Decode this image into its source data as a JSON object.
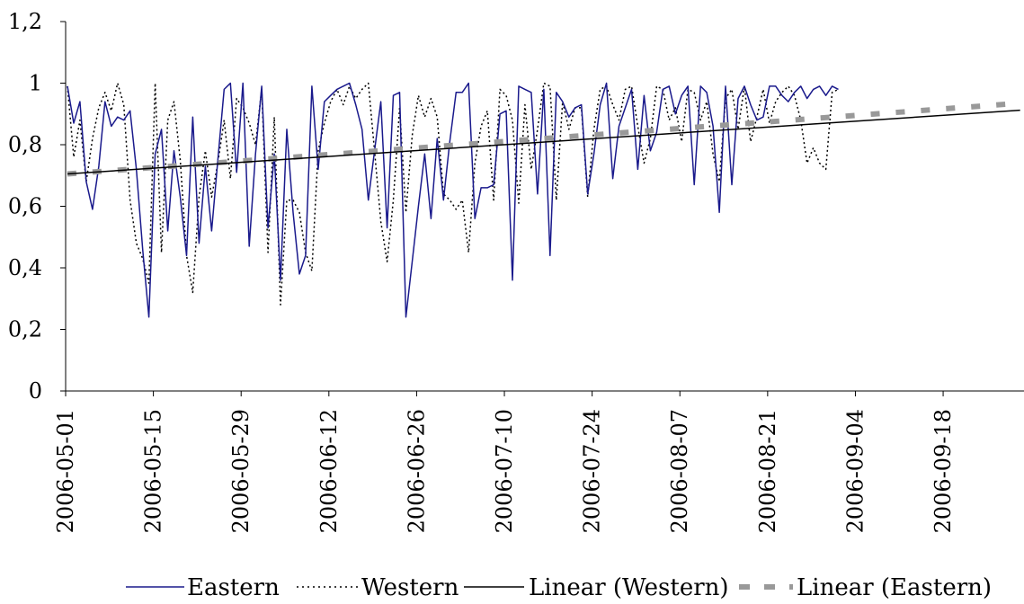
{
  "chart_data": {
    "type": "line",
    "title": "",
    "xlabel": "",
    "ylabel": "",
    "x_start": "2006-05-01",
    "x_end": "2006-09-30",
    "x_tick_labels": [
      "2006-05-01",
      "2006-05-15",
      "2006-05-29",
      "2006-06-12",
      "2006-06-26",
      "2006-07-10",
      "2006-07-24",
      "2006-08-07",
      "2006-08-21",
      "2006-09-04",
      "2006-09-18"
    ],
    "ylim": [
      0,
      1.2
    ],
    "y_tick_labels": [
      "0",
      "0,2",
      "0,4",
      "0,6",
      "0,8",
      "1",
      "1,2"
    ],
    "grid": false,
    "legend_position": "bottom",
    "series": [
      {
        "name": "Eastern",
        "color": "#1a1a8c",
        "style": "solid",
        "points": [
          [
            "2006-05-01",
            0.99
          ],
          [
            "2006-05-02",
            0.87
          ],
          [
            "2006-05-03",
            0.94
          ],
          [
            "2006-05-04",
            0.68
          ],
          [
            "2006-05-05",
            0.59
          ],
          [
            "2006-05-06",
            0.73
          ],
          [
            "2006-05-07",
            0.94
          ],
          [
            "2006-05-08",
            0.86
          ],
          [
            "2006-05-09",
            0.89
          ],
          [
            "2006-05-10",
            0.88
          ],
          [
            "2006-05-11",
            0.91
          ],
          [
            "2006-05-12",
            0.72
          ],
          [
            "2006-05-13",
            0.46
          ],
          [
            "2006-05-14",
            0.24
          ],
          [
            "2006-05-15",
            0.77
          ],
          [
            "2006-05-16",
            0.85
          ],
          [
            "2006-05-17",
            0.52
          ],
          [
            "2006-05-18",
            0.78
          ],
          [
            "2006-05-19",
            0.63
          ],
          [
            "2006-05-20",
            0.44
          ],
          [
            "2006-05-21",
            0.89
          ],
          [
            "2006-05-22",
            0.48
          ],
          [
            "2006-05-23",
            0.73
          ],
          [
            "2006-05-24",
            0.52
          ],
          [
            "2006-05-25",
            0.75
          ],
          [
            "2006-05-26",
            0.98
          ],
          [
            "2006-05-27",
            1.0
          ],
          [
            "2006-05-28",
            0.71
          ],
          [
            "2006-05-29",
            1.0
          ],
          [
            "2006-05-30",
            0.47
          ],
          [
            "2006-05-31",
            0.77
          ],
          [
            "2006-06-01",
            0.99
          ],
          [
            "2006-06-02",
            0.53
          ],
          [
            "2006-06-03",
            0.77
          ],
          [
            "2006-06-04",
            0.36
          ],
          [
            "2006-06-05",
            0.85
          ],
          [
            "2006-06-06",
            0.58
          ],
          [
            "2006-06-07",
            0.38
          ],
          [
            "2006-06-08",
            0.44
          ],
          [
            "2006-06-09",
            0.99
          ],
          [
            "2006-06-10",
            0.72
          ],
          [
            "2006-06-11",
            0.94
          ],
          [
            "2006-06-12",
            0.96
          ],
          [
            "2006-06-13",
            0.98
          ],
          [
            "2006-06-14",
            0.99
          ],
          [
            "2006-06-15",
            1.0
          ],
          [
            "2006-06-16",
            0.93
          ],
          [
            "2006-06-17",
            0.85
          ],
          [
            "2006-06-18",
            0.62
          ],
          [
            "2006-06-19",
            0.78
          ],
          [
            "2006-06-20",
            0.94
          ],
          [
            "2006-06-21",
            0.53
          ],
          [
            "2006-06-22",
            0.96
          ],
          [
            "2006-06-23",
            0.97
          ],
          [
            "2006-06-24",
            0.24
          ],
          [
            "2006-06-25",
            0.42
          ],
          [
            "2006-06-26",
            0.6
          ],
          [
            "2006-06-27",
            0.77
          ],
          [
            "2006-06-28",
            0.56
          ],
          [
            "2006-06-29",
            0.82
          ],
          [
            "2006-06-30",
            0.62
          ],
          [
            "2006-07-01",
            0.81
          ],
          [
            "2006-07-02",
            0.97
          ],
          [
            "2006-07-03",
            0.97
          ],
          [
            "2006-07-04",
            1.0
          ],
          [
            "2006-07-05",
            0.56
          ],
          [
            "2006-07-06",
            0.66
          ],
          [
            "2006-07-07",
            0.66
          ],
          [
            "2006-07-08",
            0.67
          ],
          [
            "2006-07-09",
            0.9
          ],
          [
            "2006-07-10",
            0.91
          ],
          [
            "2006-07-11",
            0.36
          ],
          [
            "2006-07-12",
            0.99
          ],
          [
            "2006-07-13",
            0.98
          ],
          [
            "2006-07-14",
            0.97
          ],
          [
            "2006-07-15",
            0.64
          ],
          [
            "2006-07-16",
            0.98
          ],
          [
            "2006-07-17",
            0.44
          ],
          [
            "2006-07-18",
            0.97
          ],
          [
            "2006-07-19",
            0.94
          ],
          [
            "2006-07-20",
            0.89
          ],
          [
            "2006-07-21",
            0.92
          ],
          [
            "2006-07-22",
            0.93
          ],
          [
            "2006-07-23",
            0.64
          ],
          [
            "2006-07-24",
            0.77
          ],
          [
            "2006-07-25",
            0.93
          ],
          [
            "2006-07-26",
            1.0
          ],
          [
            "2006-07-27",
            0.69
          ],
          [
            "2006-07-28",
            0.86
          ],
          [
            "2006-07-29",
            0.92
          ],
          [
            "2006-07-30",
            0.98
          ],
          [
            "2006-07-31",
            0.72
          ],
          [
            "2006-08-01",
            0.96
          ],
          [
            "2006-08-02",
            0.78
          ],
          [
            "2006-08-03",
            0.84
          ],
          [
            "2006-08-04",
            0.98
          ],
          [
            "2006-08-05",
            0.99
          ],
          [
            "2006-08-06",
            0.9
          ],
          [
            "2006-08-07",
            0.96
          ],
          [
            "2006-08-08",
            0.99
          ],
          [
            "2006-08-09",
            0.67
          ],
          [
            "2006-08-10",
            0.99
          ],
          [
            "2006-08-11",
            0.97
          ],
          [
            "2006-08-12",
            0.86
          ],
          [
            "2006-08-13",
            0.58
          ],
          [
            "2006-08-14",
            0.99
          ],
          [
            "2006-08-15",
            0.67
          ],
          [
            "2006-08-16",
            0.95
          ],
          [
            "2006-08-17",
            0.99
          ],
          [
            "2006-08-18",
            0.93
          ],
          [
            "2006-08-19",
            0.88
          ],
          [
            "2006-08-20",
            0.89
          ],
          [
            "2006-08-21",
            0.99
          ],
          [
            "2006-08-22",
            0.99
          ],
          [
            "2006-08-23",
            0.96
          ],
          [
            "2006-08-24",
            0.94
          ],
          [
            "2006-08-25",
            0.97
          ],
          [
            "2006-08-26",
            0.99
          ],
          [
            "2006-08-27",
            0.95
          ],
          [
            "2006-08-28",
            0.98
          ],
          [
            "2006-08-29",
            0.99
          ],
          [
            "2006-08-30",
            0.96
          ],
          [
            "2006-08-31",
            0.99
          ],
          [
            "2006-09-01",
            0.98
          ]
        ]
      },
      {
        "name": "Western",
        "color": "#000000",
        "style": "dotted",
        "points": [
          [
            "2006-05-01",
            0.99
          ],
          [
            "2006-05-02",
            0.76
          ],
          [
            "2006-05-03",
            0.88
          ],
          [
            "2006-05-04",
            0.68
          ],
          [
            "2006-05-05",
            0.82
          ],
          [
            "2006-05-06",
            0.92
          ],
          [
            "2006-05-07",
            0.97
          ],
          [
            "2006-05-08",
            0.91
          ],
          [
            "2006-05-09",
            1.0
          ],
          [
            "2006-05-10",
            0.93
          ],
          [
            "2006-05-11",
            0.62
          ],
          [
            "2006-05-12",
            0.48
          ],
          [
            "2006-05-13",
            0.43
          ],
          [
            "2006-05-14",
            0.35
          ],
          [
            "2006-05-15",
            1.0
          ],
          [
            "2006-05-16",
            0.45
          ],
          [
            "2006-05-17",
            0.88
          ],
          [
            "2006-05-18",
            0.94
          ],
          [
            "2006-05-19",
            0.75
          ],
          [
            "2006-05-20",
            0.44
          ],
          [
            "2006-05-21",
            0.32
          ],
          [
            "2006-05-22",
            0.63
          ],
          [
            "2006-05-23",
            0.78
          ],
          [
            "2006-05-24",
            0.63
          ],
          [
            "2006-05-25",
            0.74
          ],
          [
            "2006-05-26",
            0.88
          ],
          [
            "2006-05-27",
            0.69
          ],
          [
            "2006-05-28",
            0.95
          ],
          [
            "2006-05-29",
            0.92
          ],
          [
            "2006-05-30",
            0.87
          ],
          [
            "2006-05-31",
            0.8
          ],
          [
            "2006-06-01",
            0.98
          ],
          [
            "2006-06-02",
            0.45
          ],
          [
            "2006-06-03",
            0.89
          ],
          [
            "2006-06-04",
            0.28
          ],
          [
            "2006-06-05",
            0.62
          ],
          [
            "2006-06-06",
            0.62
          ],
          [
            "2006-06-07",
            0.58
          ],
          [
            "2006-06-08",
            0.45
          ],
          [
            "2006-06-09",
            0.39
          ],
          [
            "2006-06-10",
            0.78
          ],
          [
            "2006-06-11",
            0.87
          ],
          [
            "2006-06-12",
            0.94
          ],
          [
            "2006-06-13",
            0.98
          ],
          [
            "2006-06-14",
            0.93
          ],
          [
            "2006-06-15",
            0.99
          ],
          [
            "2006-06-16",
            0.95
          ],
          [
            "2006-06-17",
            0.98
          ],
          [
            "2006-06-18",
            1.0
          ],
          [
            "2006-06-19",
            0.78
          ],
          [
            "2006-06-20",
            0.55
          ],
          [
            "2006-06-21",
            0.42
          ],
          [
            "2006-06-22",
            0.62
          ],
          [
            "2006-06-23",
            0.92
          ],
          [
            "2006-06-24",
            0.58
          ],
          [
            "2006-06-25",
            0.83
          ],
          [
            "2006-06-26",
            0.96
          ],
          [
            "2006-06-27",
            0.89
          ],
          [
            "2006-06-28",
            0.95
          ],
          [
            "2006-06-29",
            0.89
          ],
          [
            "2006-06-30",
            0.64
          ],
          [
            "2006-07-01",
            0.62
          ],
          [
            "2006-07-02",
            0.59
          ],
          [
            "2006-07-03",
            0.62
          ],
          [
            "2006-07-04",
            0.45
          ],
          [
            "2006-07-05",
            0.74
          ],
          [
            "2006-07-06",
            0.86
          ],
          [
            "2006-07-07",
            0.91
          ],
          [
            "2006-07-08",
            0.62
          ],
          [
            "2006-07-09",
            0.98
          ],
          [
            "2006-07-10",
            0.96
          ],
          [
            "2006-07-11",
            0.88
          ],
          [
            "2006-07-12",
            0.61
          ],
          [
            "2006-07-13",
            0.93
          ],
          [
            "2006-07-14",
            0.72
          ],
          [
            "2006-07-15",
            0.85
          ],
          [
            "2006-07-16",
            1.0
          ],
          [
            "2006-07-17",
            0.99
          ],
          [
            "2006-07-18",
            0.62
          ],
          [
            "2006-07-19",
            0.94
          ],
          [
            "2006-07-20",
            0.85
          ],
          [
            "2006-07-21",
            0.92
          ],
          [
            "2006-07-22",
            0.92
          ],
          [
            "2006-07-23",
            0.63
          ],
          [
            "2006-07-24",
            0.85
          ],
          [
            "2006-07-25",
            0.98
          ],
          [
            "2006-07-26",
            0.99
          ],
          [
            "2006-07-27",
            0.93
          ],
          [
            "2006-07-28",
            0.88
          ],
          [
            "2006-07-29",
            0.98
          ],
          [
            "2006-07-30",
            0.99
          ],
          [
            "2006-07-31",
            0.86
          ],
          [
            "2006-08-01",
            0.74
          ],
          [
            "2006-08-02",
            0.82
          ],
          [
            "2006-08-03",
            0.99
          ],
          [
            "2006-08-04",
            0.98
          ],
          [
            "2006-08-05",
            0.88
          ],
          [
            "2006-08-06",
            0.92
          ],
          [
            "2006-08-07",
            0.81
          ],
          [
            "2006-08-08",
            0.98
          ],
          [
            "2006-08-09",
            0.97
          ],
          [
            "2006-08-10",
            0.88
          ],
          [
            "2006-08-11",
            0.94
          ],
          [
            "2006-08-12",
            0.77
          ],
          [
            "2006-08-13",
            0.68
          ],
          [
            "2006-08-14",
            0.95
          ],
          [
            "2006-08-15",
            0.98
          ],
          [
            "2006-08-16",
            0.85
          ],
          [
            "2006-08-17",
            0.99
          ],
          [
            "2006-08-18",
            0.81
          ],
          [
            "2006-08-19",
            0.89
          ],
          [
            "2006-08-20",
            0.98
          ],
          [
            "2006-08-21",
            0.87
          ],
          [
            "2006-08-22",
            0.94
          ],
          [
            "2006-08-23",
            0.97
          ],
          [
            "2006-08-24",
            0.99
          ],
          [
            "2006-08-25",
            0.96
          ],
          [
            "2006-08-26",
            0.88
          ],
          [
            "2006-08-27",
            0.74
          ],
          [
            "2006-08-28",
            0.79
          ],
          [
            "2006-08-29",
            0.74
          ],
          [
            "2006-08-30",
            0.72
          ],
          [
            "2006-08-31",
            0.97
          ],
          [
            "2006-09-01",
            0.98
          ]
        ]
      },
      {
        "name": "Linear (Western)",
        "color": "#000000",
        "style": "solid-thin",
        "points": [
          [
            "2006-05-01",
            0.705
          ],
          [
            "2006-09-30",
            0.912
          ]
        ]
      },
      {
        "name": "Linear (Eastern)",
        "color": "#999999",
        "style": "dashed-thick",
        "points": [
          [
            "2006-05-01",
            0.705
          ],
          [
            "2006-09-30",
            0.935
          ]
        ]
      }
    ]
  }
}
